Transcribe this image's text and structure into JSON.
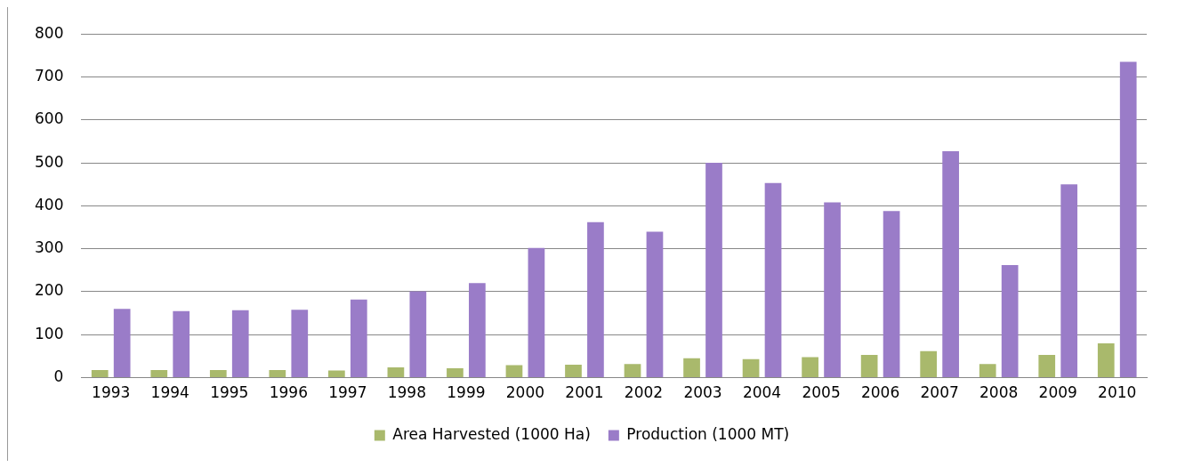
{
  "chart_data": {
    "type": "bar",
    "categories": [
      "1993",
      "1994",
      "1995",
      "1996",
      "1997",
      "1998",
      "1999",
      "2000",
      "2001",
      "2002",
      "2003",
      "2004",
      "2005",
      "2006",
      "2007",
      "2008",
      "2009",
      "2010"
    ],
    "series": [
      {
        "name": "Area Harvested (1000 Ha)",
        "color": "#a9b96c",
        "values": [
          18,
          18,
          18,
          18,
          17,
          24,
          22,
          29,
          30,
          32,
          45,
          43,
          48,
          53,
          62,
          32,
          53,
          80
        ]
      },
      {
        "name": "Production (1000 MT)",
        "color": "#9a7cc8",
        "values": [
          160,
          155,
          157,
          158,
          182,
          201,
          220,
          302,
          362,
          340,
          500,
          453,
          408,
          388,
          527,
          262,
          450,
          735
        ]
      }
    ],
    "ylim": [
      0,
      800
    ],
    "yticks": [
      0,
      100,
      200,
      300,
      400,
      500,
      600,
      700,
      800
    ],
    "grid": "y",
    "legend": "bottom"
  }
}
